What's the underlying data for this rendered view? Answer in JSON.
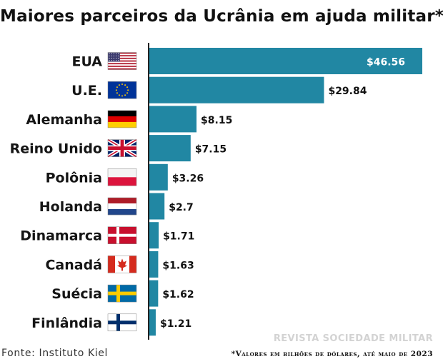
{
  "title": "Maiores parceiros da Ucrânia em ajuda militar*",
  "source": "Fonte: Instituto Kiel",
  "footnote": "*Valores em bilhões de dólares, até maio de 2023",
  "watermark": "REVISTA SOCIEDADE MILITAR",
  "colors": {
    "bar": "#2187a3",
    "bar_edge": "#156f87",
    "axis": "#222222",
    "label_inside": "#ffffff",
    "label_outside": "#111111"
  },
  "chart_data": {
    "type": "bar",
    "orientation": "horizontal",
    "categories": [
      "EUA",
      "U.E.",
      "Alemanha",
      "Reino Unido",
      "Polônia",
      "Holanda",
      "Dinamarca",
      "Canadá",
      "Suécia",
      "Finlândia"
    ],
    "values": [
      46.56,
      29.84,
      8.15,
      7.15,
      3.26,
      2.7,
      1.71,
      1.63,
      1.62,
      1.21
    ],
    "value_labels": [
      "$46.56",
      "$29.84",
      "$8.15",
      "$7.15",
      "$3.26",
      "$2.7",
      "$1.71",
      "$1.63",
      "$1.62",
      "$1.21"
    ],
    "flags": [
      "usa-flag",
      "eu-flag",
      "germany-flag",
      "uk-flag",
      "poland-flag",
      "netherlands-flag",
      "denmark-flag",
      "canada-flag",
      "sweden-flag",
      "finland-flag"
    ],
    "unit": "bilhões de dólares",
    "xlim": [
      0,
      46.56
    ],
    "grid": false,
    "legend": "none"
  }
}
